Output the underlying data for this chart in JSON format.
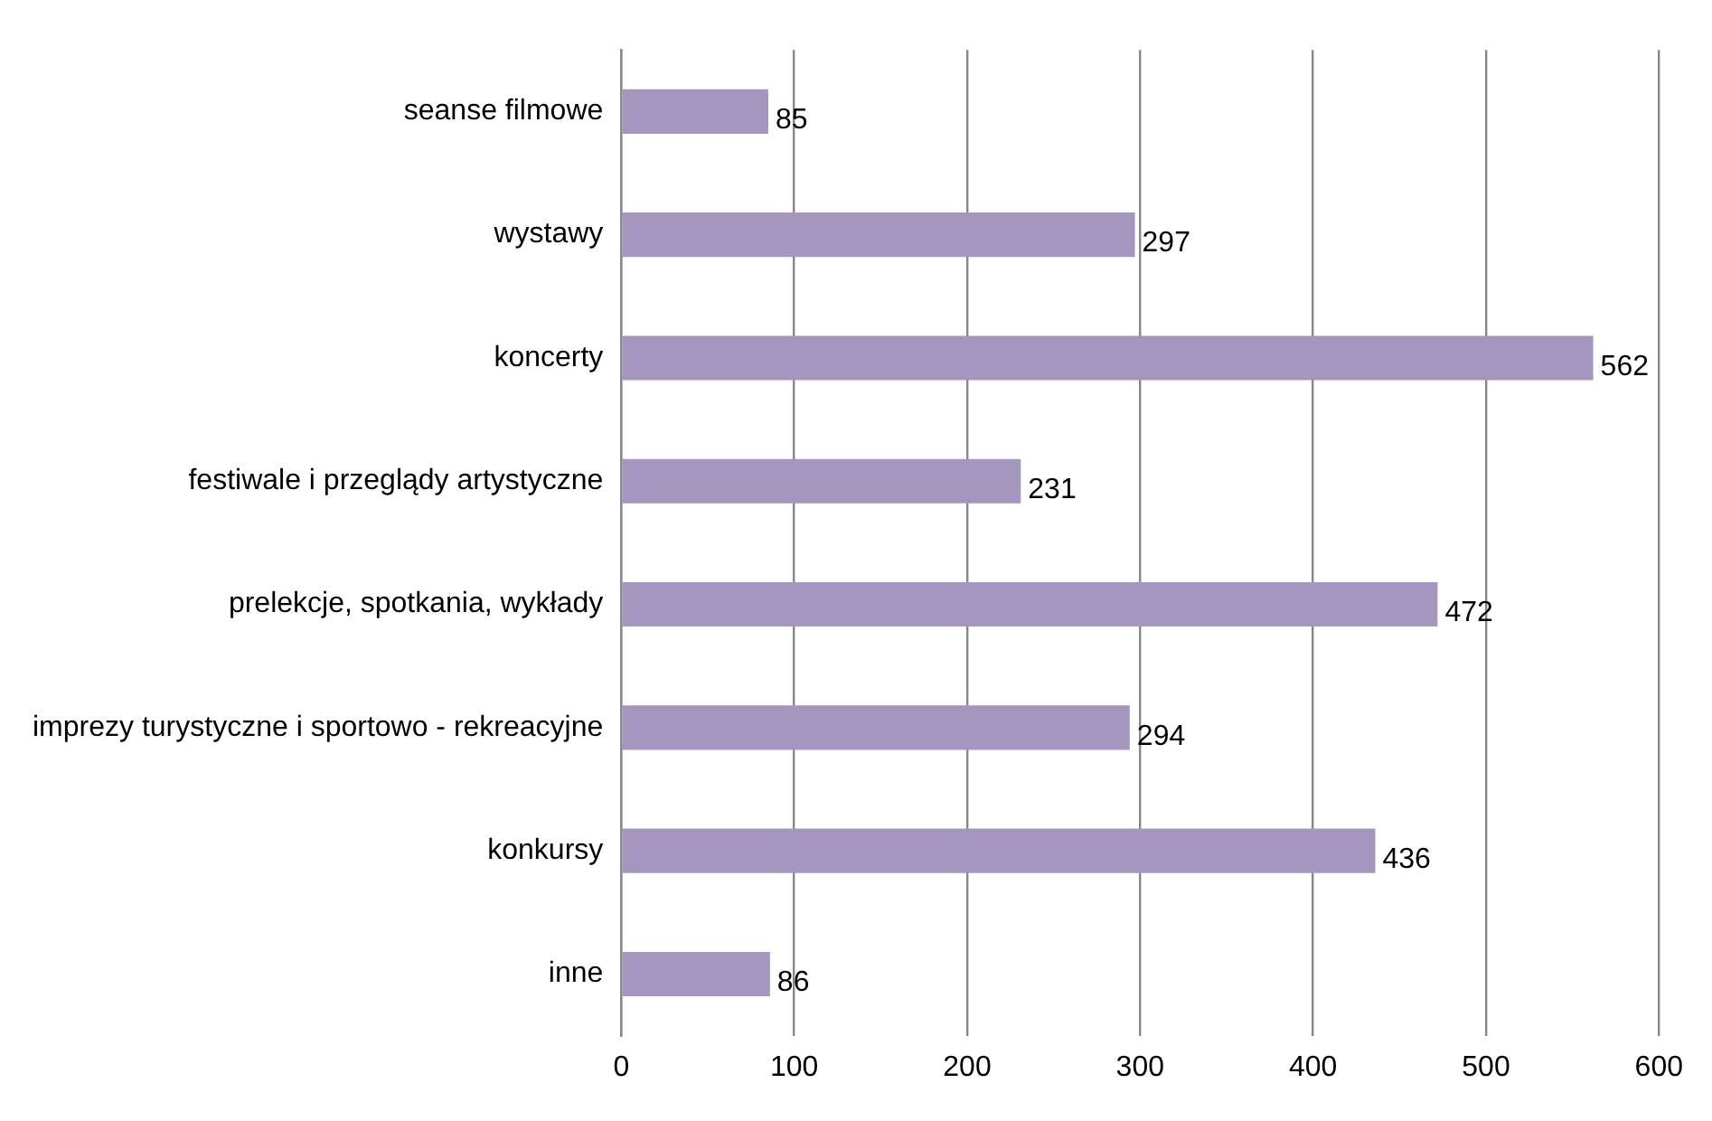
{
  "chart_data": {
    "type": "bar",
    "orientation": "horizontal",
    "categories": [
      "seanse filmowe",
      "wystawy",
      "koncerty",
      "festiwale i przeglądy artystyczne",
      "prelekcje, spotkania, wykłady",
      "imprezy turystyczne i sportowo - rekreacyjne",
      "konkursy",
      "inne"
    ],
    "values": [
      85,
      297,
      562,
      231,
      472,
      294,
      436,
      86
    ],
    "color": "#a596c0",
    "xlim": [
      0,
      600
    ],
    "xticks": [
      0,
      100,
      200,
      300,
      400,
      500,
      600
    ],
    "grid": "x",
    "legend": false,
    "data_labels": true
  }
}
